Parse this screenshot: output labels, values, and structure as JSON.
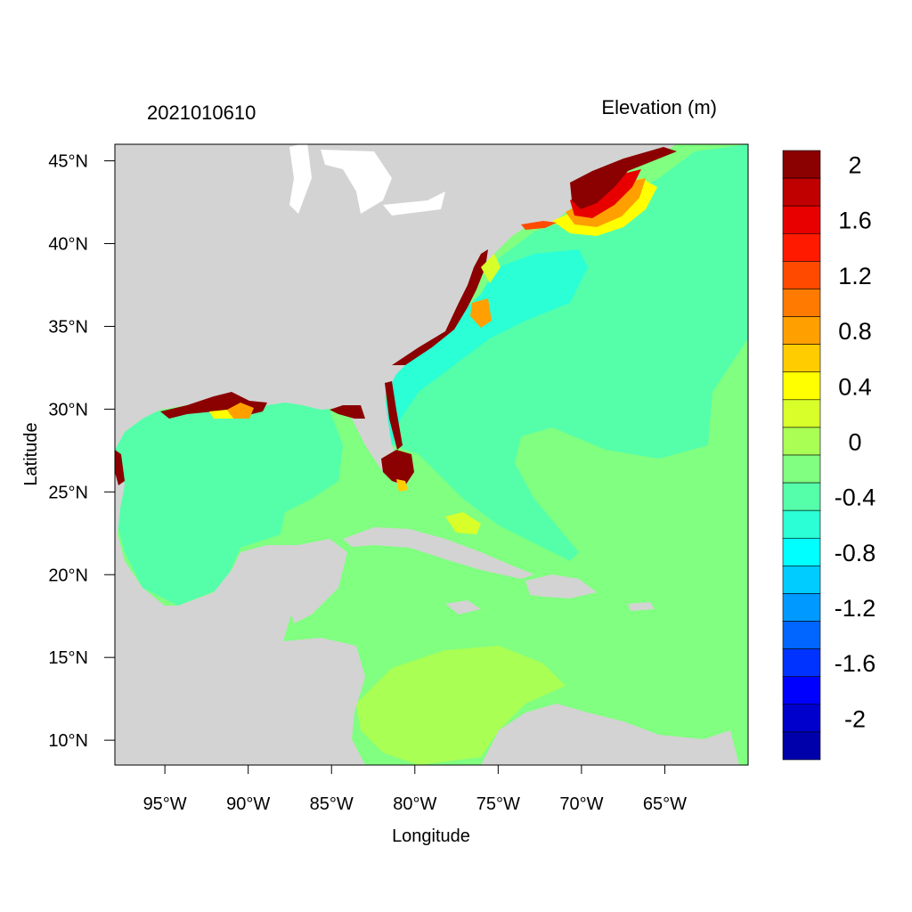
{
  "header": {
    "timestamp": "2021010610",
    "field_title": "Elevation (m)"
  },
  "axes": {
    "xlabel": "Longitude",
    "ylabel": "Latitude",
    "xticks": [
      {
        "lon": -95,
        "label": "95°W"
      },
      {
        "lon": -90,
        "label": "90°W"
      },
      {
        "lon": -85,
        "label": "85°W"
      },
      {
        "lon": -80,
        "label": "80°W"
      },
      {
        "lon": -75,
        "label": "75°W"
      },
      {
        "lon": -70,
        "label": "70°W"
      },
      {
        "lon": -65,
        "label": "65°W"
      }
    ],
    "yticks": [
      {
        "lat": 45,
        "label": "45°N"
      },
      {
        "lat": 40,
        "label": "40°N"
      },
      {
        "lat": 35,
        "label": "35°N"
      },
      {
        "lat": 30,
        "label": "30°N"
      },
      {
        "lat": 25,
        "label": "25°N"
      },
      {
        "lat": 20,
        "label": "20°N"
      },
      {
        "lat": 15,
        "label": "15°N"
      },
      {
        "lat": 10,
        "label": "10°N"
      }
    ],
    "lon_range": [
      -98,
      -60
    ],
    "lat_range": [
      8.5,
      46
    ]
  },
  "colors": {
    "land": "#d3d3d3",
    "background_ocean": "#80ff80"
  },
  "colorbar": {
    "levels": [
      {
        "color": "#8b0000",
        "label": "2"
      },
      {
        "color": "#c00000",
        "label": ""
      },
      {
        "color": "#e80000",
        "label": "1.6"
      },
      {
        "color": "#ff1a00",
        "label": ""
      },
      {
        "color": "#ff4a00",
        "label": "1.2"
      },
      {
        "color": "#ff7a00",
        "label": ""
      },
      {
        "color": "#ffa000",
        "label": "0.8"
      },
      {
        "color": "#ffcc00",
        "label": ""
      },
      {
        "color": "#ffff00",
        "label": "0.4"
      },
      {
        "color": "#d8ff2a",
        "label": ""
      },
      {
        "color": "#aaff55",
        "label": "0"
      },
      {
        "color": "#80ff80",
        "label": ""
      },
      {
        "color": "#55ffaa",
        "label": "-0.4"
      },
      {
        "color": "#2affd5",
        "label": ""
      },
      {
        "color": "#00ffff",
        "label": "-0.8"
      },
      {
        "color": "#00ccff",
        "label": ""
      },
      {
        "color": "#0099ff",
        "label": "-1.2"
      },
      {
        "color": "#0066ff",
        "label": ""
      },
      {
        "color": "#0033ff",
        "label": "-1.6"
      },
      {
        "color": "#0000ff",
        "label": ""
      },
      {
        "color": "#0000cc",
        "label": "-2"
      },
      {
        "color": "#0000aa",
        "label": ""
      }
    ]
  }
}
